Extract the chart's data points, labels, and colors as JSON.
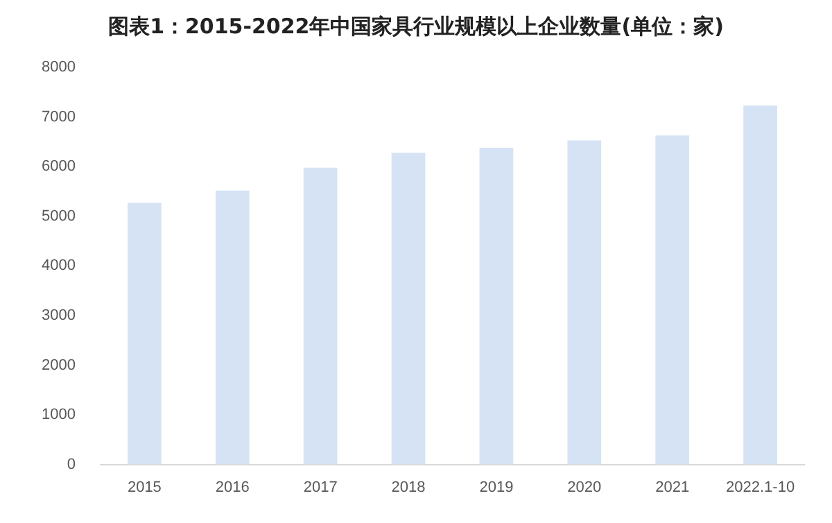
{
  "chart_data": {
    "type": "bar",
    "title": "图表1：2015-2022年中国家具行业规模以上企业数量(单位：家)",
    "categories": [
      "2015",
      "2016",
      "2017",
      "2018",
      "2019",
      "2020",
      "2021",
      "2022.1-10"
    ],
    "values": [
      5270,
      5520,
      5980,
      6280,
      6380,
      6530,
      6630,
      7230
    ],
    "color": "#d6e3f5",
    "ylim": [
      0,
      8000
    ],
    "yticks": [
      0,
      1000,
      2000,
      3000,
      4000,
      5000,
      6000,
      7000,
      8000
    ],
    "grid": false,
    "legend": false
  }
}
